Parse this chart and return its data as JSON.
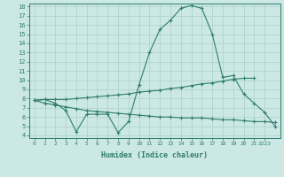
{
  "xlabel": "Humidex (Indice chaleur)",
  "bg_color": "#cce8e4",
  "line_color": "#2e7d6e",
  "grid_color": "#aad0ca",
  "x_values": [
    0,
    1,
    2,
    3,
    4,
    5,
    6,
    7,
    8,
    9,
    10,
    11,
    12,
    13,
    14,
    15,
    16,
    17,
    18,
    19,
    20,
    21,
    22,
    23
  ],
  "line1_y": [
    7.8,
    7.9,
    7.5,
    6.7,
    4.4,
    6.3,
    6.3,
    6.3,
    4.3,
    5.5,
    9.5,
    13.0,
    15.5,
    16.5,
    17.8,
    18.1,
    17.8,
    15.0,
    10.3,
    10.5,
    8.5,
    7.5,
    6.5,
    5.0
  ],
  "line2_y": [
    7.8,
    7.9,
    7.9,
    7.9,
    8.0,
    8.1,
    8.2,
    8.3,
    8.4,
    8.5,
    8.7,
    8.8,
    8.9,
    9.1,
    9.2,
    9.4,
    9.6,
    9.7,
    9.9,
    10.1,
    10.2,
    10.2,
    null,
    null
  ],
  "line3_y": [
    7.8,
    7.5,
    7.3,
    7.1,
    6.9,
    6.7,
    6.6,
    6.5,
    6.4,
    6.3,
    6.2,
    6.1,
    6.0,
    6.0,
    5.9,
    5.9,
    5.9,
    5.8,
    5.7,
    5.7,
    5.6,
    5.5,
    5.5,
    5.4
  ],
  "ylim": [
    4,
    18
  ],
  "xlim": [
    -0.5,
    23.5
  ],
  "yticks": [
    4,
    5,
    6,
    7,
    8,
    9,
    10,
    11,
    12,
    13,
    14,
    15,
    16,
    17,
    18
  ],
  "xtick_positions": [
    0,
    1,
    2,
    3,
    4,
    5,
    6,
    7,
    8,
    9,
    10,
    11,
    12,
    13,
    14,
    15,
    16,
    17,
    18,
    19,
    20,
    21,
    22
  ],
  "xtick_labels": [
    "0",
    "1",
    "2",
    "3",
    "4",
    "5",
    "6",
    "7",
    "8",
    "9",
    "10",
    "11",
    "12",
    "13",
    "14",
    "15",
    "16",
    "17",
    "18",
    "19",
    "20",
    "21",
    "2223"
  ]
}
